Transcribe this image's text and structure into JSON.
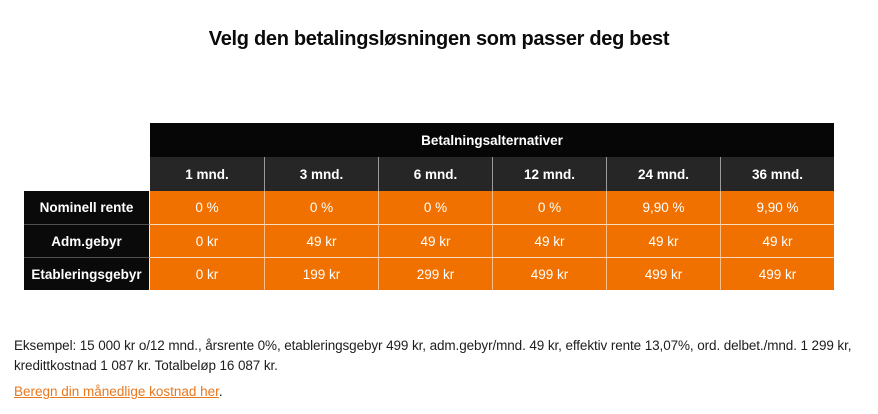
{
  "page": {
    "title": "Velg den betalingsløsningen som passer deg best"
  },
  "table": {
    "header": "Betalningsalternativer",
    "columns": [
      "1 mnd.",
      "3 mnd.",
      "6 mnd.",
      "12 mnd.",
      "24 mnd.",
      "36 mnd."
    ],
    "rows": [
      {
        "label": "Nominell rente",
        "values": [
          "0 %",
          "0 %",
          "0 %",
          "0 %",
          "9,90 %",
          "9,90 %"
        ]
      },
      {
        "label": "Adm.gebyr",
        "values": [
          "0 kr",
          "49 kr",
          "49 kr",
          "49 kr",
          "49 kr",
          "49 kr"
        ]
      },
      {
        "label": "Etableringsgebyr",
        "values": [
          "0 kr",
          "199 kr",
          "299 kr",
          "499 kr",
          "499 kr",
          "499 kr"
        ]
      }
    ]
  },
  "footer": {
    "example_lines": [
      "Eksempel: 15 000 kr o/12 mnd., årsrente 0%, etableringsgebyr 499 kr, adm.gebyr/mnd. 49 kr, effektiv rente 13,07%, ord. delbet./mnd. 1 299 kr,",
      "kredittkostnad 1 087 kr. Totalbeløp 16 087 kr."
    ],
    "link_text": "Beregn din månedlige kostnad her",
    "link_suffix": "."
  },
  "colors": {
    "accent_orange": "#F07100",
    "link_orange": "#E8781E",
    "header_black": "#060606",
    "subheader_dark": "#262626",
    "label_black": "#0A0A0A"
  }
}
